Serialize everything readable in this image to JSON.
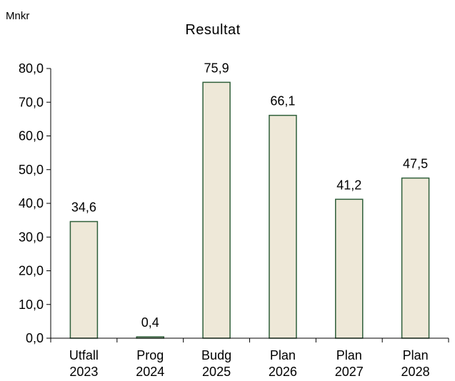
{
  "chart_data": {
    "type": "bar",
    "title": "Resultat",
    "ylabel": "Mnkr",
    "xlabel": "",
    "categories": [
      [
        "Utfall",
        "2023"
      ],
      [
        "Prog",
        "2024"
      ],
      [
        "Budg",
        "2025"
      ],
      [
        "Plan",
        "2026"
      ],
      [
        "Plan",
        "2027"
      ],
      [
        "Plan",
        "2028"
      ]
    ],
    "values": [
      34.6,
      0.4,
      75.9,
      66.1,
      41.2,
      47.5
    ],
    "data_labels": [
      "34,6",
      "0,4",
      "75,9",
      "66,1",
      "41,2",
      "47,5"
    ],
    "yticks": [
      0,
      10,
      20,
      30,
      40,
      50,
      60,
      70,
      80
    ],
    "ytick_labels": [
      "0,0",
      "10,0",
      "20,0",
      "30,0",
      "40,0",
      "50,0",
      "60,0",
      "70,0",
      "80,0"
    ],
    "ylim": [
      0,
      80
    ],
    "grid": false,
    "legend": "none",
    "colors": {
      "bar_fill": "#EEE8D8",
      "bar_stroke": "#2F5F3A",
      "axis": "#000000",
      "text": "#000000"
    }
  }
}
